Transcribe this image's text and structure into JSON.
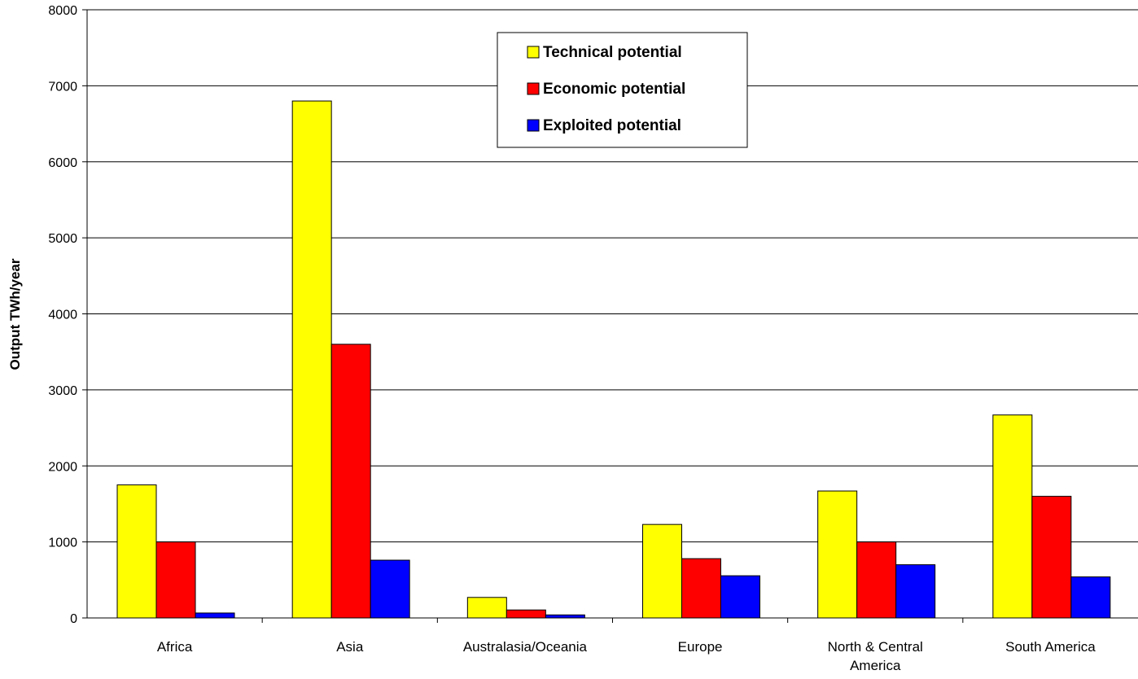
{
  "chart_data": {
    "type": "bar",
    "title": "",
    "xlabel": "",
    "ylabel": "Output TWh/year",
    "ylim": [
      0,
      8000
    ],
    "yticks": [
      0,
      1000,
      2000,
      3000,
      4000,
      5000,
      6000,
      7000,
      8000
    ],
    "grid": true,
    "legend_position": "top-center",
    "categories": [
      [
        "Africa"
      ],
      [
        "Asia"
      ],
      [
        "Australasia/Oceania"
      ],
      [
        "Europe"
      ],
      [
        "North & Central",
        "America"
      ],
      [
        "South America"
      ]
    ],
    "series": [
      {
        "name": "Technical potential",
        "color": "#ffff00",
        "values": [
          1750,
          6800,
          270,
          1230,
          1670,
          2670
        ]
      },
      {
        "name": "Economic potential",
        "color": "#ff0000",
        "values": [
          1000,
          3600,
          105,
          780,
          1000,
          1600
        ]
      },
      {
        "name": "Exploited potential",
        "color": "#0000ff",
        "values": [
          65,
          760,
          40,
          555,
          700,
          540
        ]
      }
    ]
  }
}
